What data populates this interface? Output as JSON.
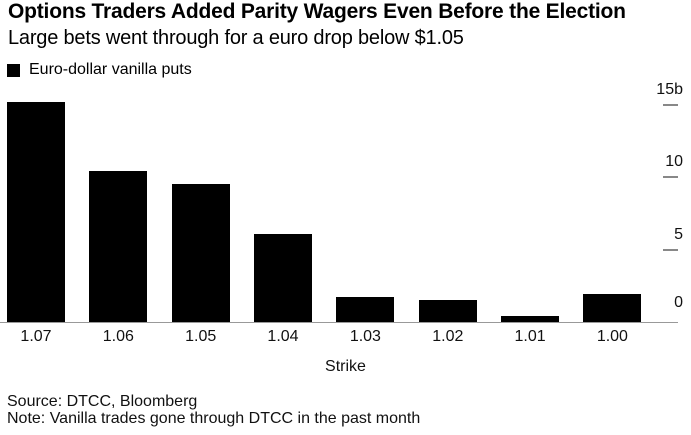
{
  "header": {
    "title": "Options Traders Added Parity Wagers Even Before the Election",
    "subtitle": "Large bets went through for a euro drop below $1.05"
  },
  "legend": {
    "swatch_color": "#000000",
    "label": "Euro-dollar vanilla puts"
  },
  "chart_data": {
    "type": "bar",
    "title": "Options Traders Added Parity Wagers Even Before the Election",
    "subtitle": "Large bets went through for a euro drop below $1.05",
    "series_name": "Euro-dollar vanilla puts",
    "categories": [
      "1.07",
      "1.06",
      "1.05",
      "1.04",
      "1.03",
      "1.02",
      "1.01",
      "1.00"
    ],
    "values": [
      15.2,
      10.4,
      9.5,
      6.1,
      1.7,
      1.5,
      0.4,
      1.9
    ],
    "unit": "billions",
    "xlabel": "Strike",
    "ylabel": "",
    "ylim": [
      0,
      16
    ],
    "yticks": [
      {
        "value": 0,
        "label": "0"
      },
      {
        "value": 5,
        "label": "5"
      },
      {
        "value": 10,
        "label": "10"
      },
      {
        "value": 15,
        "label": "15b"
      }
    ],
    "bar_color": "#000000",
    "axis_side": "right",
    "grid": false,
    "legend_position": "top-left"
  },
  "footer": {
    "source": "Source: DTCC, Bloomberg",
    "note": "Note: Vanilla trades gone through DTCC in the past month"
  }
}
